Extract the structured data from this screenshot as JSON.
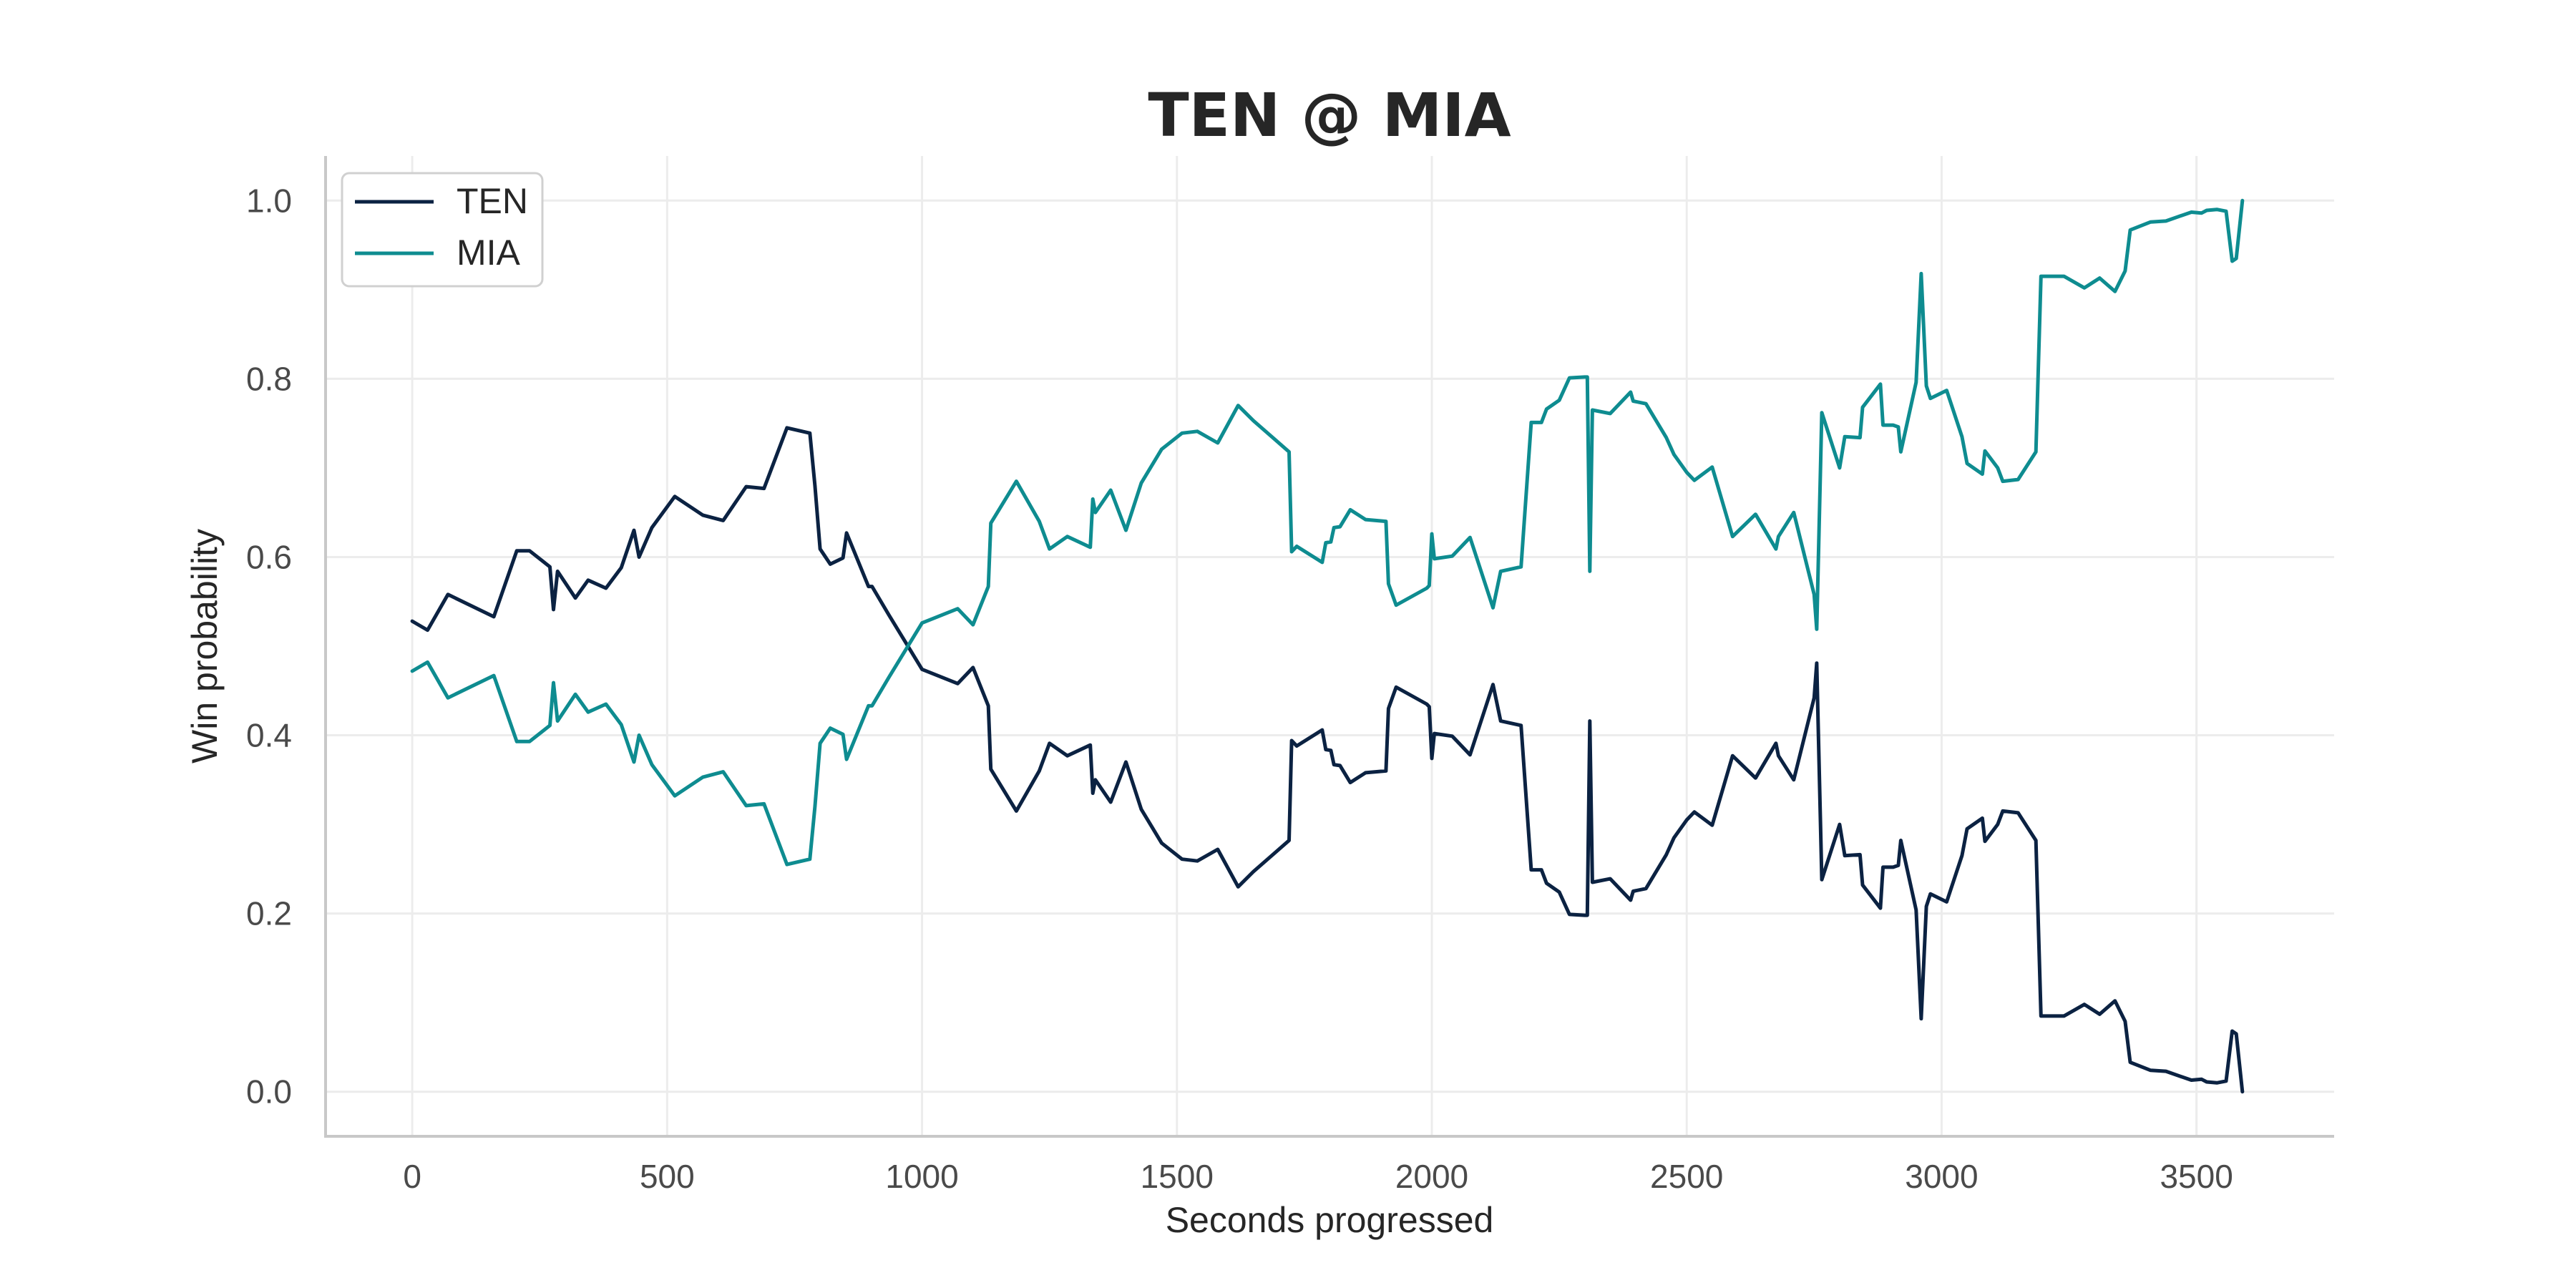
{
  "chart_data": {
    "type": "line",
    "title": "TEN @ MIA",
    "xlabel": "Seconds progressed",
    "ylabel": "Win probability",
    "xlim": [
      -170,
      3770
    ],
    "ylim": [
      -0.05,
      1.05
    ],
    "xticks": [
      0,
      500,
      1000,
      1500,
      2000,
      2500,
      3000,
      3500
    ],
    "yticks": [
      0.0,
      0.2,
      0.4,
      0.6,
      0.8,
      1.0
    ],
    "xtick_labels": [
      "0",
      "500",
      "1000",
      "1500",
      "2000",
      "2500",
      "3000",
      "3500"
    ],
    "ytick_labels": [
      "0.0",
      "0.2",
      "0.4",
      "0.6",
      "0.8",
      "1.0"
    ],
    "grid": true,
    "legend": {
      "position": "top-left"
    },
    "series": [
      {
        "name": "TEN",
        "color": "#0b2242",
        "points": [
          [
            0,
            0.528
          ],
          [
            30,
            0.518
          ],
          [
            70,
            0.558
          ],
          [
            160,
            0.533
          ],
          [
            205,
            0.607
          ],
          [
            230,
            0.607
          ],
          [
            270,
            0.589
          ],
          [
            277,
            0.541
          ],
          [
            285,
            0.584
          ],
          [
            320,
            0.554
          ],
          [
            345,
            0.574
          ],
          [
            380,
            0.565
          ],
          [
            410,
            0.588
          ],
          [
            435,
            0.63
          ],
          [
            445,
            0.6
          ],
          [
            470,
            0.633
          ],
          [
            515,
            0.668
          ],
          [
            570,
            0.647
          ],
          [
            610,
            0.641
          ],
          [
            655,
            0.679
          ],
          [
            690,
            0.677
          ],
          [
            735,
            0.745
          ],
          [
            780,
            0.739
          ],
          [
            790,
            0.68
          ],
          [
            800,
            0.609
          ],
          [
            820,
            0.592
          ],
          [
            845,
            0.599
          ],
          [
            852,
            0.627
          ],
          [
            895,
            0.567
          ],
          [
            902,
            0.567
          ],
          [
            935,
            0.535
          ],
          [
            1000,
            0.474
          ],
          [
            1070,
            0.458
          ],
          [
            1100,
            0.476
          ],
          [
            1130,
            0.433
          ],
          [
            1135,
            0.362
          ],
          [
            1185,
            0.315
          ],
          [
            1230,
            0.36
          ],
          [
            1250,
            0.391
          ],
          [
            1285,
            0.377
          ],
          [
            1330,
            0.389
          ],
          [
            1335,
            0.335
          ],
          [
            1340,
            0.35
          ],
          [
            1370,
            0.325
          ],
          [
            1400,
            0.37
          ],
          [
            1430,
            0.317
          ],
          [
            1470,
            0.279
          ],
          [
            1510,
            0.261
          ],
          [
            1540,
            0.259
          ],
          [
            1580,
            0.272
          ],
          [
            1620,
            0.23
          ],
          [
            1650,
            0.247
          ],
          [
            1690,
            0.267
          ],
          [
            1720,
            0.282
          ],
          [
            1725,
            0.394
          ],
          [
            1735,
            0.388
          ],
          [
            1785,
            0.406
          ],
          [
            1792,
            0.384
          ],
          [
            1802,
            0.383
          ],
          [
            1808,
            0.367
          ],
          [
            1820,
            0.366
          ],
          [
            1840,
            0.347
          ],
          [
            1870,
            0.358
          ],
          [
            1910,
            0.36
          ],
          [
            1915,
            0.43
          ],
          [
            1930,
            0.454
          ],
          [
            1990,
            0.435
          ],
          [
            1995,
            0.432
          ],
          [
            2000,
            0.374
          ],
          [
            2005,
            0.402
          ],
          [
            2040,
            0.399
          ],
          [
            2075,
            0.378
          ],
          [
            2120,
            0.457
          ],
          [
            2135,
            0.416
          ],
          [
            2175,
            0.411
          ],
          [
            2195,
            0.249
          ],
          [
            2215,
            0.249
          ],
          [
            2225,
            0.234
          ],
          [
            2250,
            0.224
          ],
          [
            2270,
            0.199
          ],
          [
            2300,
            0.198
          ],
          [
            2305,
            0.198
          ],
          [
            2310,
            0.416
          ],
          [
            2315,
            0.235
          ],
          [
            2350,
            0.239
          ],
          [
            2390,
            0.215
          ],
          [
            2395,
            0.225
          ],
          [
            2420,
            0.228
          ],
          [
            2460,
            0.266
          ],
          [
            2475,
            0.285
          ],
          [
            2500,
            0.305
          ],
          [
            2515,
            0.314
          ],
          [
            2550,
            0.299
          ],
          [
            2590,
            0.377
          ],
          [
            2635,
            0.352
          ],
          [
            2675,
            0.391
          ],
          [
            2680,
            0.377
          ],
          [
            2710,
            0.35
          ],
          [
            2750,
            0.442
          ],
          [
            2755,
            0.481
          ],
          [
            2765,
            0.238
          ],
          [
            2800,
            0.3
          ],
          [
            2810,
            0.265
          ],
          [
            2840,
            0.266
          ],
          [
            2845,
            0.232
          ],
          [
            2880,
            0.206
          ],
          [
            2885,
            0.252
          ],
          [
            2905,
            0.252
          ],
          [
            2915,
            0.254
          ],
          [
            2920,
            0.282
          ],
          [
            2950,
            0.204
          ],
          [
            2960,
            0.082
          ],
          [
            2970,
            0.208
          ],
          [
            2978,
            0.222
          ],
          [
            3010,
            0.213
          ],
          [
            3040,
            0.265
          ],
          [
            3050,
            0.295
          ],
          [
            3080,
            0.307
          ],
          [
            3085,
            0.281
          ],
          [
            3110,
            0.3
          ],
          [
            3120,
            0.315
          ],
          [
            3150,
            0.313
          ],
          [
            3185,
            0.282
          ],
          [
            3195,
            0.085
          ],
          [
            3240,
            0.085
          ],
          [
            3280,
            0.098
          ],
          [
            3310,
            0.087
          ],
          [
            3340,
            0.102
          ],
          [
            3360,
            0.079
          ],
          [
            3370,
            0.033
          ],
          [
            3410,
            0.024
          ],
          [
            3440,
            0.023
          ],
          [
            3470,
            0.017
          ],
          [
            3490,
            0.013
          ],
          [
            3510,
            0.014
          ],
          [
            3520,
            0.011
          ],
          [
            3540,
            0.01
          ],
          [
            3558,
            0.012
          ],
          [
            3570,
            0.068
          ],
          [
            3578,
            0.065
          ],
          [
            3590,
            0.0
          ]
        ]
      },
      {
        "name": "MIA",
        "color": "#0e8c90",
        "points": [
          [
            0,
            0.472
          ],
          [
            30,
            0.482
          ],
          [
            70,
            0.442
          ],
          [
            160,
            0.467
          ],
          [
            205,
            0.393
          ],
          [
            230,
            0.393
          ],
          [
            270,
            0.411
          ],
          [
            277,
            0.459
          ],
          [
            285,
            0.416
          ],
          [
            320,
            0.446
          ],
          [
            345,
            0.426
          ],
          [
            380,
            0.435
          ],
          [
            410,
            0.412
          ],
          [
            435,
            0.37
          ],
          [
            445,
            0.4
          ],
          [
            470,
            0.367
          ],
          [
            515,
            0.332
          ],
          [
            570,
            0.353
          ],
          [
            610,
            0.359
          ],
          [
            655,
            0.321
          ],
          [
            690,
            0.323
          ],
          [
            735,
            0.255
          ],
          [
            780,
            0.261
          ],
          [
            790,
            0.32
          ],
          [
            800,
            0.391
          ],
          [
            820,
            0.408
          ],
          [
            845,
            0.401
          ],
          [
            852,
            0.373
          ],
          [
            895,
            0.433
          ],
          [
            902,
            0.433
          ],
          [
            935,
            0.465
          ],
          [
            1000,
            0.526
          ],
          [
            1070,
            0.542
          ],
          [
            1100,
            0.524
          ],
          [
            1130,
            0.567
          ],
          [
            1135,
            0.638
          ],
          [
            1185,
            0.685
          ],
          [
            1230,
            0.64
          ],
          [
            1250,
            0.609
          ],
          [
            1285,
            0.623
          ],
          [
            1330,
            0.611
          ],
          [
            1335,
            0.665
          ],
          [
            1340,
            0.65
          ],
          [
            1370,
            0.675
          ],
          [
            1400,
            0.63
          ],
          [
            1430,
            0.683
          ],
          [
            1470,
            0.721
          ],
          [
            1510,
            0.739
          ],
          [
            1540,
            0.741
          ],
          [
            1580,
            0.728
          ],
          [
            1620,
            0.77
          ],
          [
            1650,
            0.753
          ],
          [
            1690,
            0.733
          ],
          [
            1720,
            0.718
          ],
          [
            1725,
            0.606
          ],
          [
            1735,
            0.612
          ],
          [
            1785,
            0.594
          ],
          [
            1792,
            0.616
          ],
          [
            1802,
            0.617
          ],
          [
            1808,
            0.633
          ],
          [
            1820,
            0.634
          ],
          [
            1840,
            0.653
          ],
          [
            1870,
            0.642
          ],
          [
            1910,
            0.64
          ],
          [
            1915,
            0.57
          ],
          [
            1930,
            0.546
          ],
          [
            1990,
            0.565
          ],
          [
            1995,
            0.568
          ],
          [
            2000,
            0.626
          ],
          [
            2005,
            0.598
          ],
          [
            2040,
            0.601
          ],
          [
            2075,
            0.622
          ],
          [
            2120,
            0.543
          ],
          [
            2135,
            0.584
          ],
          [
            2175,
            0.589
          ],
          [
            2195,
            0.751
          ],
          [
            2215,
            0.751
          ],
          [
            2225,
            0.766
          ],
          [
            2250,
            0.776
          ],
          [
            2270,
            0.801
          ],
          [
            2300,
            0.802
          ],
          [
            2305,
            0.802
          ],
          [
            2310,
            0.584
          ],
          [
            2315,
            0.765
          ],
          [
            2350,
            0.761
          ],
          [
            2390,
            0.785
          ],
          [
            2395,
            0.775
          ],
          [
            2420,
            0.772
          ],
          [
            2460,
            0.734
          ],
          [
            2475,
            0.715
          ],
          [
            2500,
            0.695
          ],
          [
            2515,
            0.686
          ],
          [
            2550,
            0.701
          ],
          [
            2590,
            0.623
          ],
          [
            2635,
            0.648
          ],
          [
            2675,
            0.609
          ],
          [
            2680,
            0.623
          ],
          [
            2710,
            0.65
          ],
          [
            2750,
            0.558
          ],
          [
            2755,
            0.519
          ],
          [
            2765,
            0.762
          ],
          [
            2800,
            0.7
          ],
          [
            2810,
            0.735
          ],
          [
            2840,
            0.734
          ],
          [
            2845,
            0.768
          ],
          [
            2880,
            0.794
          ],
          [
            2885,
            0.748
          ],
          [
            2905,
            0.748
          ],
          [
            2915,
            0.746
          ],
          [
            2920,
            0.718
          ],
          [
            2950,
            0.796
          ],
          [
            2960,
            0.918
          ],
          [
            2970,
            0.792
          ],
          [
            2978,
            0.778
          ],
          [
            3010,
            0.787
          ],
          [
            3040,
            0.735
          ],
          [
            3050,
            0.705
          ],
          [
            3080,
            0.693
          ],
          [
            3085,
            0.719
          ],
          [
            3110,
            0.7
          ],
          [
            3120,
            0.685
          ],
          [
            3150,
            0.687
          ],
          [
            3185,
            0.718
          ],
          [
            3195,
            0.915
          ],
          [
            3240,
            0.915
          ],
          [
            3280,
            0.902
          ],
          [
            3310,
            0.913
          ],
          [
            3340,
            0.898
          ],
          [
            3360,
            0.921
          ],
          [
            3370,
            0.967
          ],
          [
            3410,
            0.976
          ],
          [
            3440,
            0.977
          ],
          [
            3470,
            0.983
          ],
          [
            3490,
            0.987
          ],
          [
            3510,
            0.986
          ],
          [
            3520,
            0.989
          ],
          [
            3540,
            0.99
          ],
          [
            3558,
            0.988
          ],
          [
            3570,
            0.932
          ],
          [
            3578,
            0.935
          ],
          [
            3590,
            1.0
          ]
        ]
      }
    ]
  }
}
